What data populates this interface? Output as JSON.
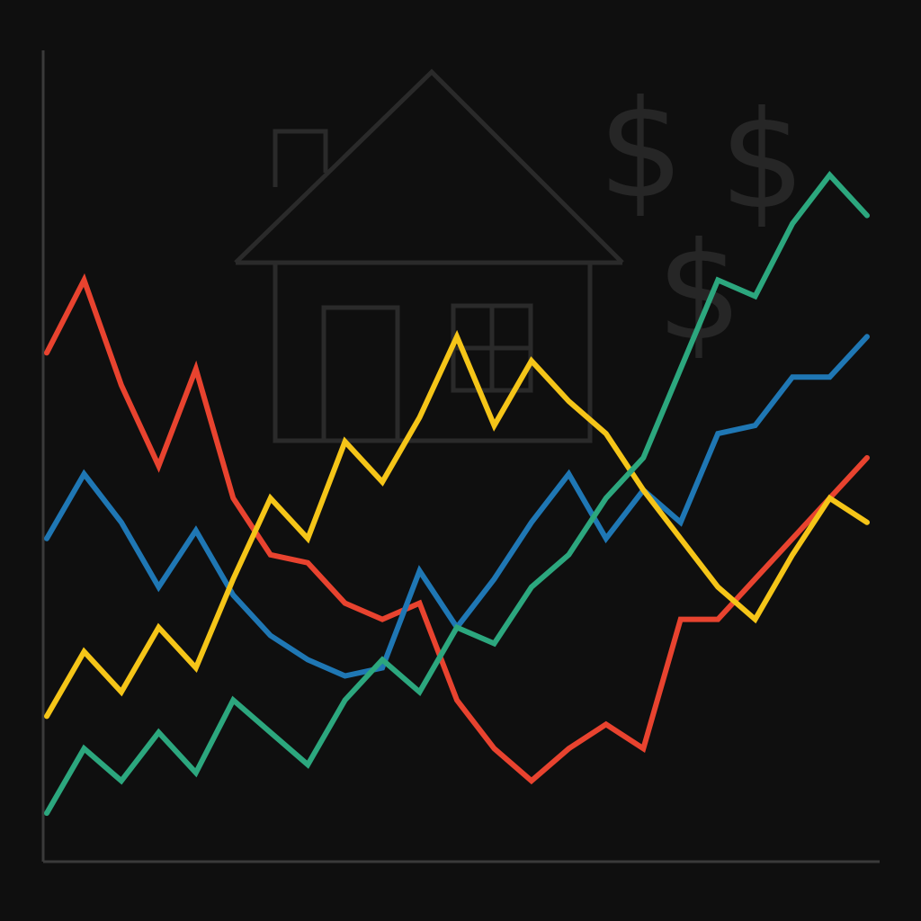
{
  "background": {
    "color": "#0f0f0f",
    "art_color": "#2a2a2a",
    "icons": [
      "house-icon",
      "dollar-sign-icon",
      "dollar-sign-icon",
      "dollar-sign-icon"
    ],
    "dollar_glyph": "$"
  },
  "chart_data": {
    "type": "line",
    "title": "",
    "xlabel": "",
    "ylabel": "",
    "grid": false,
    "xlim": [
      0,
      22
    ],
    "ylim": [
      0,
      100
    ],
    "x": [
      0,
      1,
      2,
      3,
      4,
      5,
      6,
      7,
      8,
      9,
      10,
      11,
      12,
      13,
      14,
      15,
      16,
      17,
      18,
      19,
      20,
      21,
      22
    ],
    "series": [
      {
        "color": "#e8432f",
        "values": [
          63,
          72,
          59,
          49,
          61,
          45,
          38,
          37,
          32,
          30,
          32,
          20,
          14,
          10,
          14,
          17,
          14,
          30,
          30,
          35,
          40,
          45,
          50
        ]
      },
      {
        "color": "#1f77b4",
        "values": [
          40,
          48,
          42,
          34,
          41,
          33,
          28,
          25,
          23,
          24,
          36,
          29,
          35,
          42,
          48,
          40,
          46,
          42,
          53,
          54,
          60,
          60,
          65
        ]
      },
      {
        "color": "#f5c518",
        "values": [
          18,
          26,
          21,
          29,
          24,
          35,
          45,
          40,
          52,
          47,
          55,
          65,
          54,
          62,
          57,
          53,
          46,
          40,
          34,
          30,
          38,
          45,
          42
        ]
      },
      {
        "color": "#2ca77e",
        "values": [
          6,
          14,
          10,
          16,
          11,
          20,
          16,
          12,
          20,
          25,
          21,
          29,
          27,
          34,
          38,
          45,
          50,
          61,
          72,
          70,
          79,
          85,
          80
        ]
      }
    ]
  }
}
